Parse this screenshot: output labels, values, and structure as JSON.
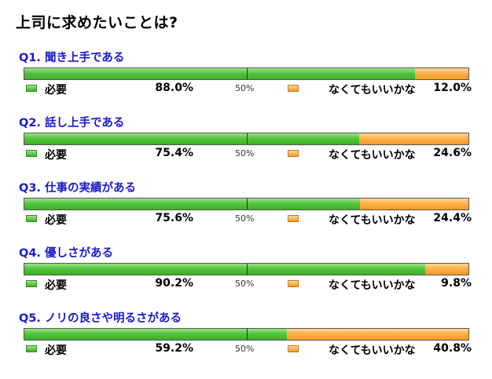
{
  "title": "上司に求めたいことは?",
  "legend": {
    "need_label": "必要",
    "optional_label": "なくてもいいかな",
    "mid_label": "50%"
  },
  "colors": {
    "need": "#54c43c",
    "optional": "#ffb04a",
    "question_title": "#1a1acc"
  },
  "questions": [
    {
      "title": "Q1. 聞き上手である",
      "need_text": "88.0%",
      "optional_text": "12.0%"
    },
    {
      "title": "Q2. 話し上手である",
      "need_text": "75.4%",
      "optional_text": "24.6%"
    },
    {
      "title": "Q3. 仕事の実績がある",
      "need_text": "75.6%",
      "optional_text": "24.4%"
    },
    {
      "title": "Q4. 優しさがある",
      "need_text": "90.2%",
      "optional_text": "9.8%"
    },
    {
      "title": "Q5. ノリの良さや明るさがある",
      "need_text": "59.2%",
      "optional_text": "40.8%"
    }
  ],
  "chart_data": {
    "type": "bar",
    "orientation": "horizontal-stacked-100",
    "title": "上司に求めたいことは?",
    "categories": [
      "Q1. 聞き上手である",
      "Q2. 話し上手である",
      "Q3. 仕事の実績がある",
      "Q4. 優しさがある",
      "Q5. ノリの良さや明るさがある"
    ],
    "series": [
      {
        "name": "必要",
        "values": [
          88.0,
          75.4,
          75.6,
          90.2,
          59.2
        ]
      },
      {
        "name": "なくてもいいかな",
        "values": [
          12.0,
          24.6,
          24.4,
          9.8,
          40.8
        ]
      }
    ],
    "xlim": [
      0,
      100
    ],
    "reference_line": 50,
    "legend_placement": "below each bar"
  }
}
